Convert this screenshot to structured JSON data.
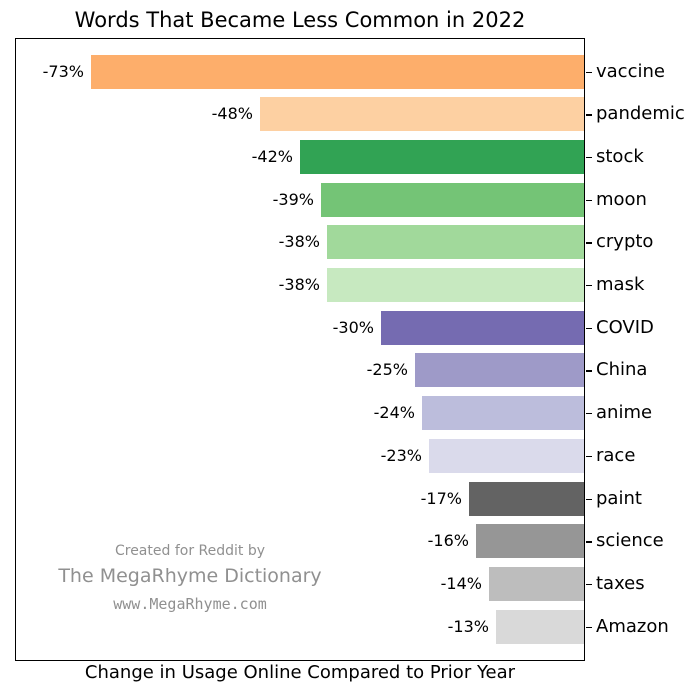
{
  "chart_data": {
    "type": "bar",
    "orientation": "horizontal",
    "title": "Words That Became Less Common in 2022",
    "xlabel": "Change in Usage Online Compared to Prior Year",
    "ylabel": "",
    "xlim": [
      -84,
      0
    ],
    "grid": false,
    "legend": "none",
    "category_label_position": "right",
    "value_label_position": "left-of-bar",
    "categories": [
      "vaccine",
      "pandemic",
      "stock",
      "moon",
      "crypto",
      "mask",
      "COVID",
      "China",
      "anime",
      "race",
      "paint",
      "science",
      "taxes",
      "Amazon"
    ],
    "values": [
      -73,
      -48,
      -42,
      -39,
      -38,
      -38,
      -30,
      -25,
      -24,
      -23,
      -17,
      -16,
      -14,
      -13
    ],
    "value_labels": [
      "-73%",
      "-48%",
      "-42%",
      "-39%",
      "-38%",
      "-38%",
      "-30%",
      "-25%",
      "-24%",
      "-23%",
      "-17%",
      "-16%",
      "-14%",
      "-13%"
    ],
    "bar_colors": [
      "#fdae6b",
      "#fdd0a2",
      "#31a354",
      "#74c476",
      "#a1d99b",
      "#c7e9c0",
      "#756bb1",
      "#9e9ac8",
      "#bcbddc",
      "#dadaeb",
      "#636363",
      "#969696",
      "#bdbdbd",
      "#d9d9d9"
    ],
    "axis_color": "#000000",
    "background_color": "#ffffff"
  },
  "watermark": {
    "line1": "Created for Reddit by",
    "line2": "The MegaRhyme Dictionary",
    "line3": "www.MegaRhyme.com",
    "color": "#909090"
  }
}
